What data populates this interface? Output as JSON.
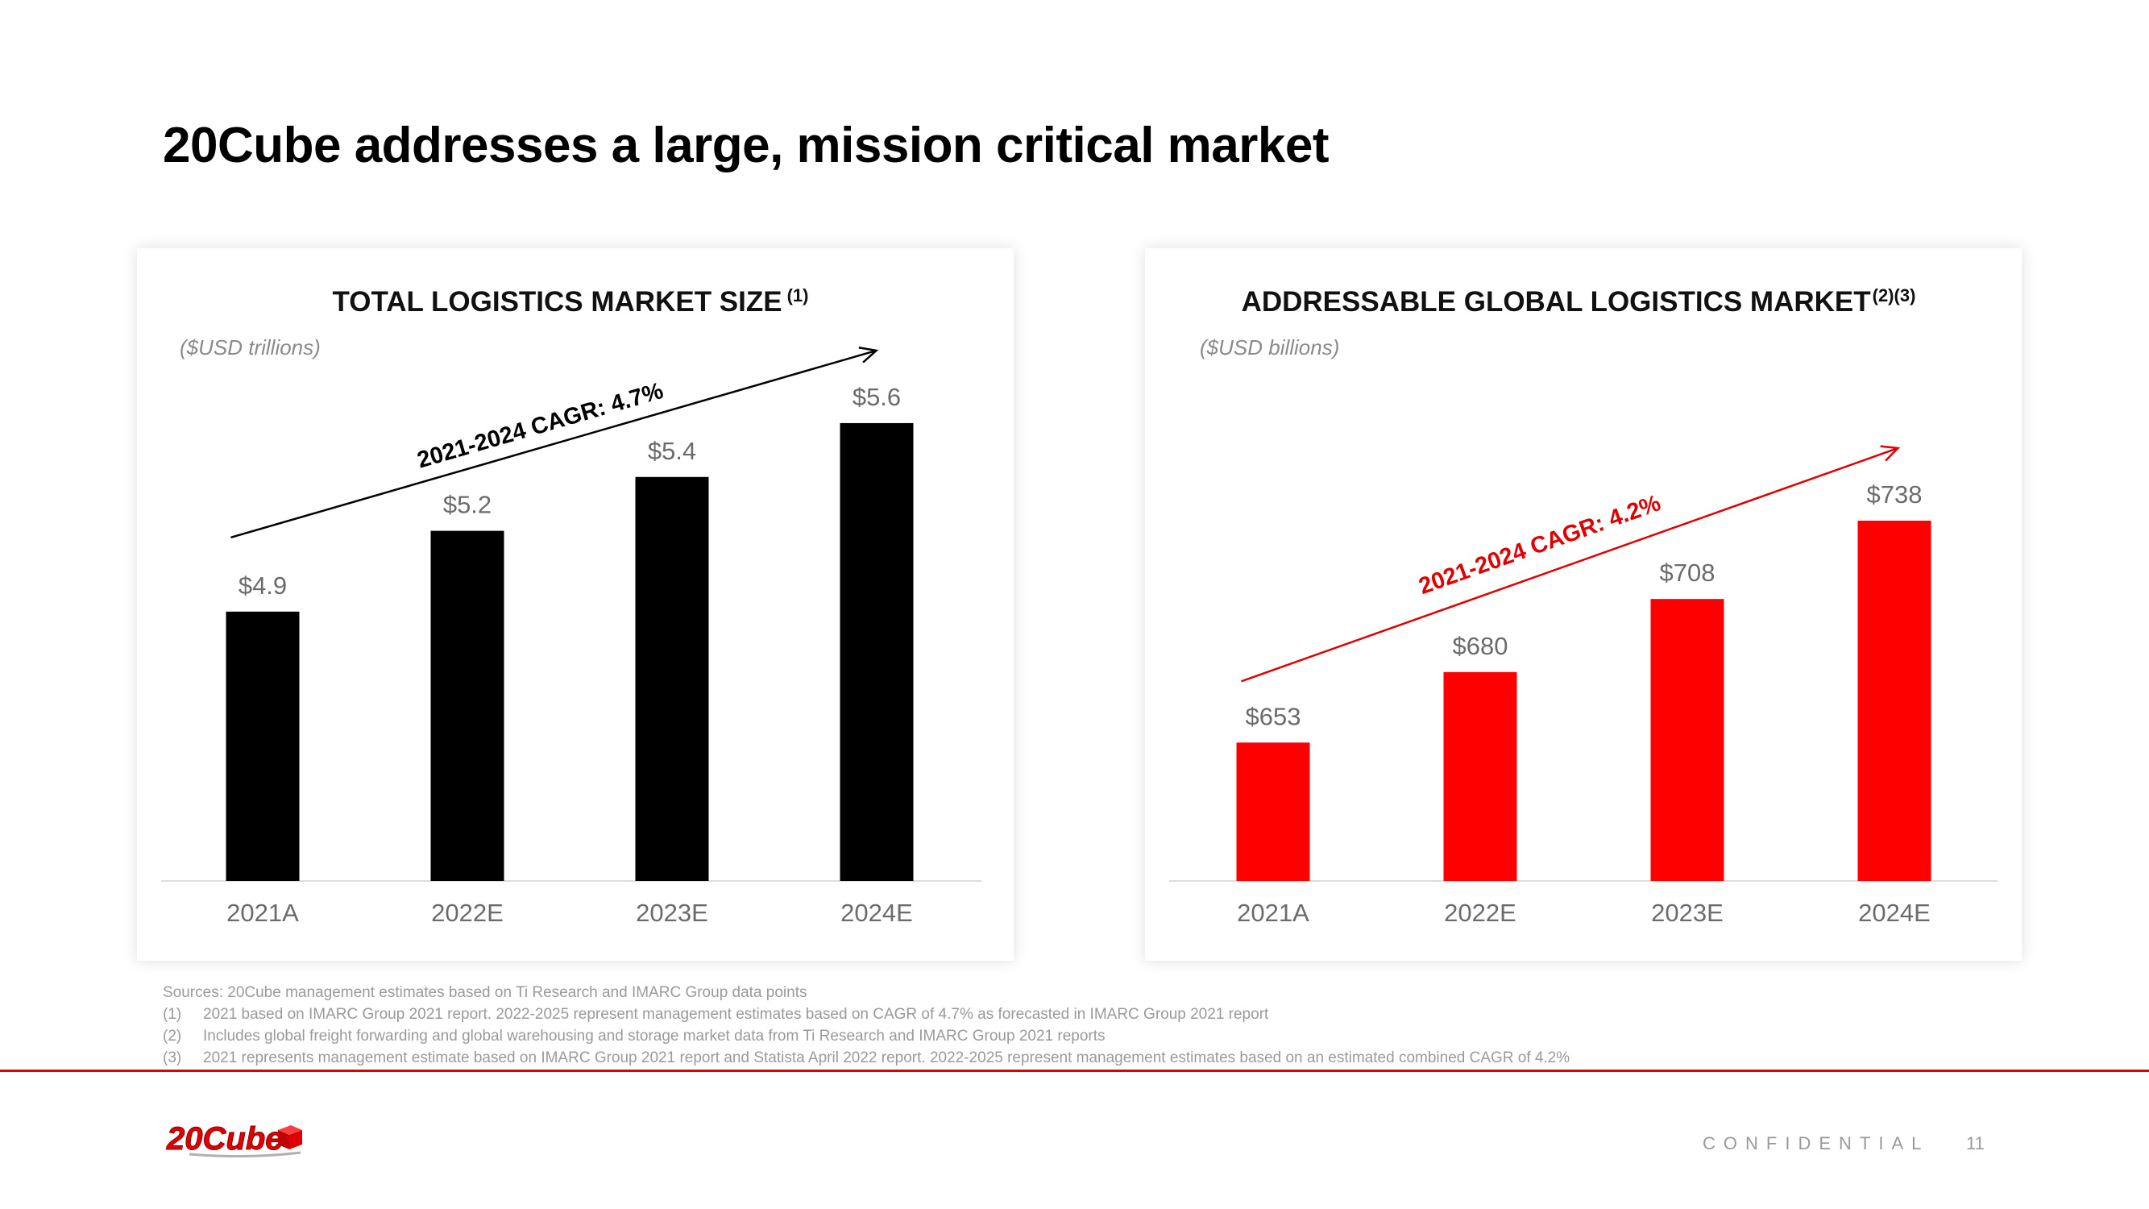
{
  "slide": {
    "title": "20Cube addresses a large, mission critical market"
  },
  "chart_data": [
    {
      "type": "bar",
      "title": "TOTAL LOGISTICS MARKET SIZE",
      "title_superscript": "(1)",
      "unit_label": "($USD trillions)",
      "categories": [
        "2021A",
        "2022E",
        "2023E",
        "2024E"
      ],
      "values": [
        4.9,
        5.2,
        5.4,
        5.6
      ],
      "value_labels": [
        "$4.9",
        "$5.2",
        "$5.4",
        "$5.6"
      ],
      "ylim": [
        3.9,
        5.92
      ],
      "bar_color": "#000000",
      "annotation": {
        "text": "2021-2024 CAGR: 4.7%",
        "color": "#000000"
      },
      "xlabel": "",
      "ylabel": "",
      "grid": false
    },
    {
      "type": "bar",
      "title": "ADDRESSABLE GLOBAL LOGISTICS MARKET",
      "title_superscript": "(2)(3)",
      "unit_label": "($USD billions)",
      "categories": [
        "2021A",
        "2022E",
        "2023E",
        "2024E"
      ],
      "values": [
        653,
        680,
        708,
        738
      ],
      "value_labels": [
        "$653",
        "$680",
        "$708",
        "$738"
      ],
      "ylim": [
        600,
        763
      ],
      "bar_color": "#ff0000",
      "annotation": {
        "text": "2021-2024 CAGR: 4.2%",
        "color": "#e00000"
      },
      "xlabel": "",
      "ylabel": "",
      "grid": false
    }
  ],
  "sources": {
    "header": "Sources: 20Cube management estimates based on Ti Research and IMARC Group data points",
    "notes": [
      {
        "num": "(1)",
        "text": "2021 based on IMARC Group 2021 report. 2022-2025 represent management estimates based on CAGR of 4.7% as forecasted in IMARC Group 2021 report"
      },
      {
        "num": "(2)",
        "text": "Includes global freight forwarding and global warehousing and storage market data from Ti Research and IMARC Group 2021 reports"
      },
      {
        "num": "(3)",
        "text": "2021 represents management estimate based on IMARC Group 2021 report and Statista April 2022 report. 2022-2025 represent management estimates based on an estimated combined CAGR of 4.2%"
      }
    ]
  },
  "footer": {
    "logo_text": "20Cube",
    "confidential": "CONFIDENTIAL",
    "page_number": "11"
  },
  "colors": {
    "accent": "#e00000",
    "muted_text": "#9a9a9a"
  }
}
